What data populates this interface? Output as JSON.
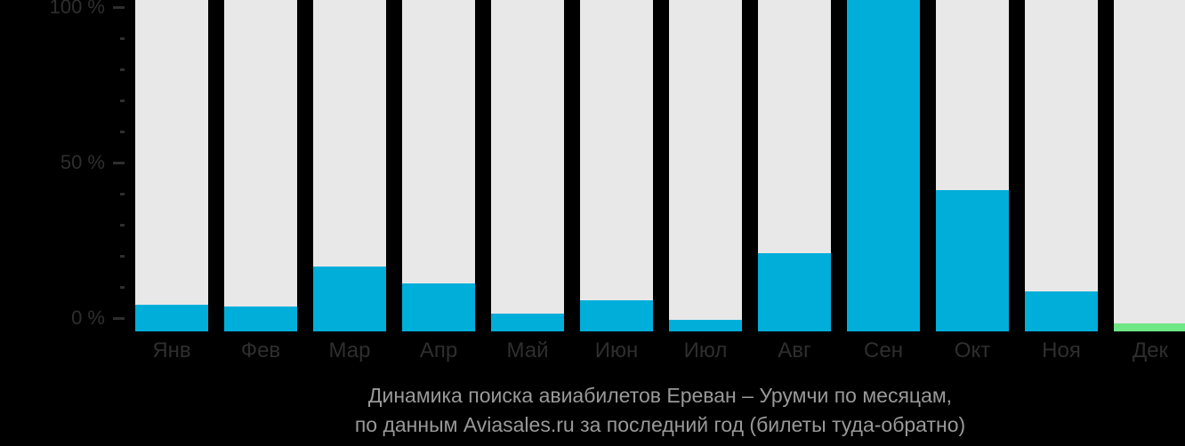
{
  "chart_data": {
    "type": "bar",
    "title": "Динамика поиска авиабилетов Ереван – Урумчи по месяцам,",
    "subtitle": "по данным Aviasales.ru за последний год (билеты туда-обратно)",
    "categories": [
      "Янв",
      "Фев",
      "Мар",
      "Апр",
      "Май",
      "Июн",
      "Июл",
      "Авг",
      "Сен",
      "Окт",
      "Ноя",
      "Дек"
    ],
    "values": [
      8,
      7.5,
      19.5,
      14.5,
      5.5,
      9.5,
      3.5,
      23.5,
      100,
      42.5,
      12,
      2.5
    ],
    "unit": "%",
    "ylim": [
      0,
      100
    ],
    "y_tick_step": 10,
    "y_tick_labels": {
      "100": "100 %",
      "50": "50 %",
      "0": "0 %"
    },
    "grid": false,
    "legend": false,
    "bar_colors": [
      "#00aeda",
      "#00aeda",
      "#00aeda",
      "#00aeda",
      "#00aeda",
      "#00aeda",
      "#00aeda",
      "#00aeda",
      "#00aeda",
      "#00aeda",
      "#00aeda",
      "#70e787"
    ],
    "colors": {
      "bar_default": "#00aeda",
      "bar_highlight": "#70e787",
      "column_background": "#e8e8e8",
      "page_background": "#000000",
      "axis_text": "#2e2e2e",
      "caption_text": "#999999"
    }
  }
}
